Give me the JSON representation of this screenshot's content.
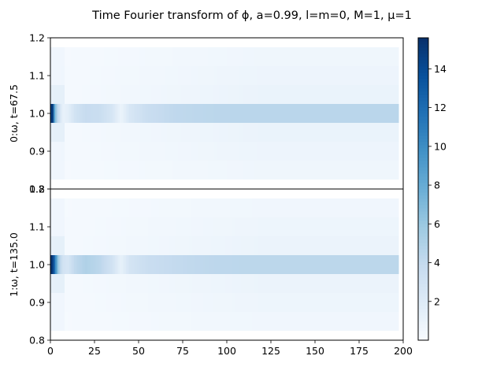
{
  "chart_data": {
    "type": "heatmap",
    "title": "Time Fourier transform of ϕ,  a=0.99, l=m=0, M=1, μ=1",
    "colormap": "Blues",
    "grid": false,
    "x": {
      "label": "",
      "range": [
        0,
        200
      ],
      "ticks": [
        0,
        25,
        50,
        75,
        100,
        125,
        150,
        175,
        200
      ],
      "data_extent": [
        0,
        197
      ]
    },
    "colorbar": {
      "range": [
        0,
        15.6
      ],
      "ticks": [
        2,
        4,
        6,
        8,
        10,
        12,
        14
      ]
    },
    "rows": [
      0.85,
      0.9,
      0.95,
      1.0,
      1.05,
      1.1,
      1.15
    ],
    "panels": [
      {
        "ylabel": "0:ω, t=67.5",
        "ylim": [
          0.8,
          1.2
        ],
        "yticks": [
          0.8,
          0.9,
          1.0,
          1.1,
          1.2
        ],
        "peak": {
          "t": [
            0,
            1.2,
            2.4,
            3.6,
            5,
            7,
            10,
            14,
            20,
            28,
            35,
            40,
            45,
            55,
            70,
            90,
            110,
            130,
            150,
            170,
            197
          ],
          "v": [
            14.5,
            15.5,
            8,
            5,
            3.2,
            1.2,
            1.5,
            3,
            3.8,
            3.6,
            2.6,
            0.9,
            2.5,
            3.6,
            4.2,
            4.4,
            4.5,
            4.5,
            4.5,
            4.5,
            4.5
          ]
        },
        "side_level": 1.7
      },
      {
        "ylabel": "1:ω, t=135.0",
        "ylim": [
          0.8,
          1.2
        ],
        "yticks": [
          0.8,
          0.9,
          1.0,
          1.1,
          1.2
        ],
        "peak": {
          "t": [
            0,
            1.2,
            2.4,
            3.6,
            5,
            7,
            10,
            14,
            20,
            28,
            35,
            40,
            45,
            55,
            70,
            90,
            110,
            130,
            150,
            170,
            197
          ],
          "v": [
            15.6,
            15.0,
            12,
            8,
            5,
            3,
            2.6,
            4.2,
            5.0,
            4.4,
            3.0,
            1.2,
            2.8,
            3.6,
            4.0,
            4.3,
            4.4,
            4.4,
            4.4,
            4.4,
            4.4
          ]
        },
        "side_level": 1.6
      }
    ]
  }
}
